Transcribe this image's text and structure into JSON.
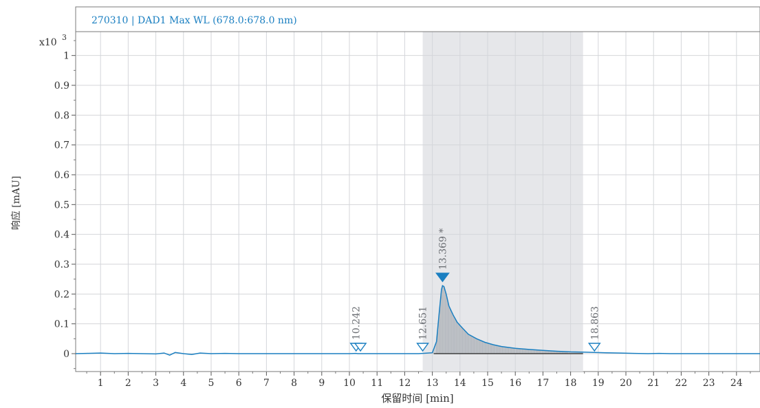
{
  "chart_data": {
    "type": "line",
    "title": "270310 | DAD1 Max WL (678.0:678.0 nm)",
    "xlabel": "保留时间 [min]",
    "ylabel": "响应 [mAU]",
    "y_multiplier": "x10",
    "y_multiplier_exp": "3",
    "xlim": [
      0.1,
      24.85
    ],
    "ylim": [
      -0.06,
      1.08
    ],
    "x_ticks": [
      1,
      2,
      3,
      4,
      5,
      6,
      7,
      8,
      9,
      10,
      11,
      12,
      13,
      14,
      15,
      16,
      17,
      18,
      19,
      20,
      21,
      22,
      23,
      24
    ],
    "y_ticks": [
      0,
      0.1,
      0.2,
      0.3,
      0.4,
      0.5,
      0.6,
      0.7,
      0.8,
      0.9,
      1
    ],
    "grid": true,
    "integration_region": [
      12.651,
      18.45
    ],
    "series": [
      {
        "color": "#1a7fc1",
        "x": [
          0.1,
          0.5,
          1.0,
          1.5,
          2.0,
          2.5,
          3.0,
          3.3,
          3.5,
          3.7,
          4.0,
          4.3,
          4.6,
          5.0,
          5.5,
          6.0,
          6.5,
          7.0,
          8.0,
          9.0,
          10.0,
          10.24,
          10.3,
          10.5,
          11.0,
          11.5,
          12.0,
          12.5,
          12.65,
          13.0,
          13.15,
          13.25,
          13.33,
          13.369,
          13.42,
          13.5,
          13.6,
          13.75,
          13.9,
          14.1,
          14.3,
          14.6,
          14.9,
          15.2,
          15.5,
          16.0,
          16.5,
          17.0,
          17.5,
          18.0,
          18.45,
          18.863,
          19.3,
          19.8,
          20.3,
          20.8,
          21.2,
          21.6,
          22.0,
          23.0,
          24.0,
          24.85
        ],
        "y": [
          0.0,
          0.001,
          0.002,
          0.0,
          0.001,
          0.0,
          -0.001,
          0.002,
          -0.005,
          0.004,
          0.0,
          -0.003,
          0.002,
          0.0,
          0.001,
          0.0,
          0.0,
          0.0,
          0.0,
          0.0,
          0.0,
          0.001,
          0.0,
          0.0,
          0.0,
          0.0,
          0.0,
          0.0,
          0.001,
          0.003,
          0.04,
          0.14,
          0.215,
          0.228,
          0.225,
          0.2,
          0.16,
          0.13,
          0.105,
          0.085,
          0.065,
          0.05,
          0.038,
          0.03,
          0.024,
          0.018,
          0.014,
          0.011,
          0.008,
          0.006,
          0.005,
          0.004,
          0.003,
          0.002,
          0.001,
          0.0,
          0.001,
          0.0,
          0.0,
          0.0,
          0.0,
          0.0
        ]
      }
    ],
    "markers": [
      {
        "x": 10.242,
        "label": "10.242",
        "style": "open"
      },
      {
        "x": 10.4,
        "label": "",
        "style": "open"
      },
      {
        "x": 12.651,
        "label": "12.651",
        "style": "open"
      },
      {
        "x": 13.369,
        "label": "13.369 *",
        "style": "filled"
      },
      {
        "x": 18.863,
        "label": "18.863",
        "style": "open"
      }
    ]
  }
}
